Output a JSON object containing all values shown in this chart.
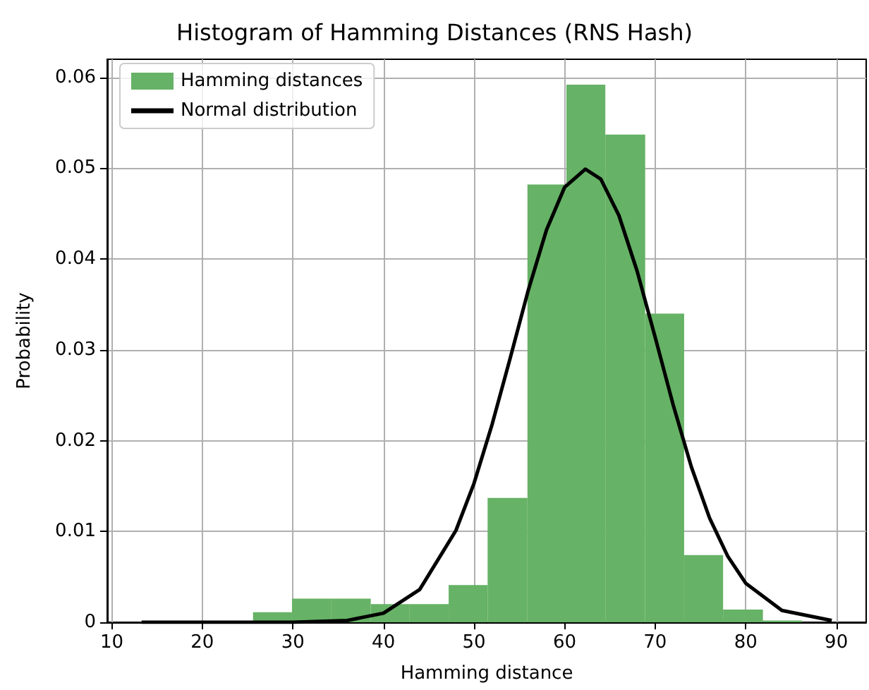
{
  "chart_data": {
    "type": "histogram",
    "title": "Histogram of Hamming Distances (RNS Hash)",
    "xlabel": "Hamming distance",
    "ylabel": "Probability",
    "series": [
      {
        "name": "Hamming distances",
        "color": "#66b266",
        "bins": [
          25.6,
          29.9,
          34.2,
          38.6,
          42.9,
          47.2,
          51.5,
          55.9,
          60.2,
          64.5,
          68.9,
          73.2,
          77.5,
          81.9,
          86.2
        ],
        "values": [
          0.0011,
          0.0026,
          0.0026,
          0.002,
          0.002,
          0.0041,
          0.0137,
          0.0482,
          0.0592,
          0.0537,
          0.034,
          0.0074,
          0.0014,
          0.0002
        ]
      },
      {
        "type": "line",
        "name": "Normal distribution",
        "color": "#000000",
        "x": [
          13.3,
          30,
          36,
          40,
          44,
          48,
          50,
          52,
          54,
          56,
          58,
          60,
          62.3,
          64,
          66,
          68,
          70,
          72,
          74,
          76,
          78,
          80,
          84,
          89.5
        ],
        "values": [
          0,
          0,
          0.0002,
          0.001,
          0.0036,
          0.0101,
          0.0153,
          0.0218,
          0.0291,
          0.0366,
          0.0432,
          0.0479,
          0.0499,
          0.0488,
          0.0448,
          0.0387,
          0.0314,
          0.0239,
          0.0171,
          0.0115,
          0.0073,
          0.0043,
          0.0013,
          0.0002
        ]
      }
    ],
    "xlim": [
      9.5,
      93.3
    ],
    "xticks": [
      10,
      20,
      30,
      40,
      50,
      60,
      70,
      80,
      90
    ],
    "ylim": [
      0,
      0.062
    ],
    "yticks": [
      0,
      0.01,
      0.02,
      0.03,
      0.04,
      0.05,
      0.06
    ],
    "grid": true,
    "legend": "top left",
    "line_style": "solid",
    "marker": "none"
  }
}
